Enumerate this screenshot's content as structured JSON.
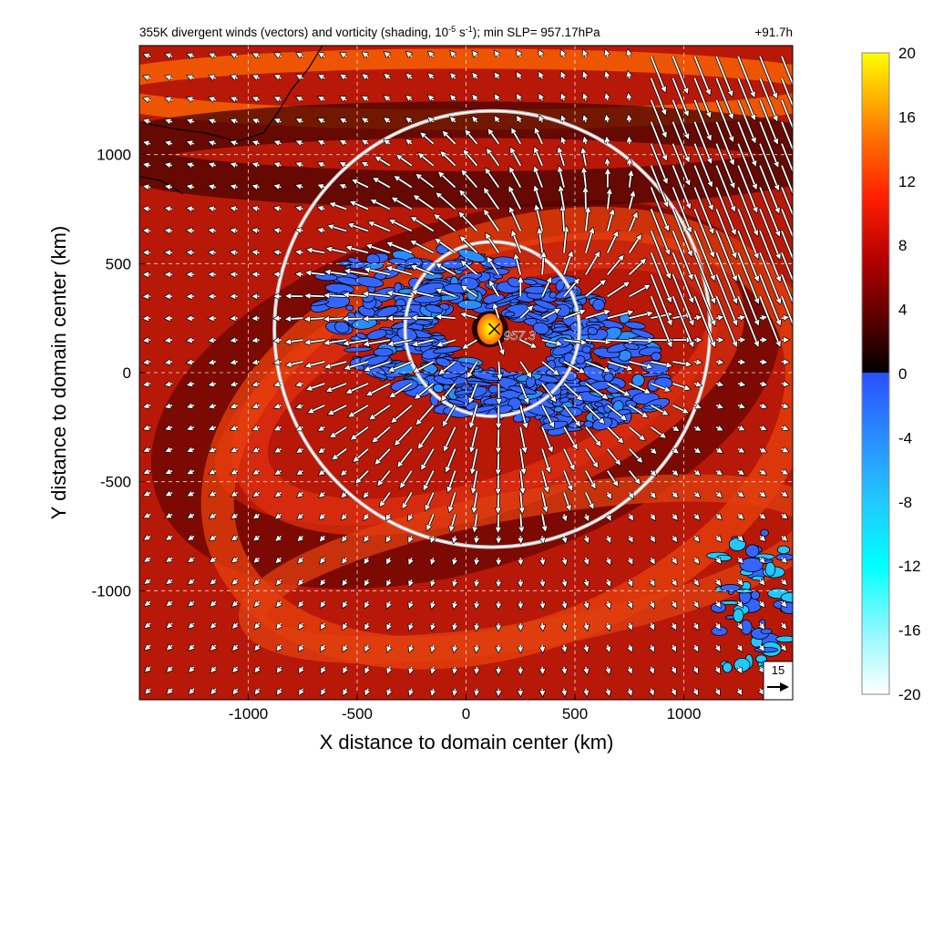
{
  "chart_data": {
    "type": "heatmap",
    "title": {
      "main": "355K divergent winds (vectors) and vorticity (shading, 10",
      "sup": "-5",
      "unit": " s",
      "sup2": "-1",
      "tail": "); min SLP= 957.17hPa"
    },
    "forecast_hour": "+91.7h",
    "xlabel": "X distance to domain center (km)",
    "ylabel": "Y distance to domain center (km)",
    "xlim": [
      -1500,
      1500
    ],
    "ylim": [
      -1500,
      1500
    ],
    "x_ticks": [
      -1000,
      -500,
      0,
      500,
      1000
    ],
    "y_ticks": [
      -1000,
      -500,
      0,
      500,
      1000
    ],
    "grid": true,
    "colorbar": {
      "range": [
        -20,
        20
      ],
      "ticks": [
        20,
        16,
        12,
        8,
        4,
        0,
        -4,
        -8,
        -12,
        -16,
        -20
      ],
      "positive_colors": [
        "#000000",
        "#5a0000",
        "#b40000",
        "#ff2000",
        "#ff7800",
        "#ffc800",
        "#ffff00"
      ],
      "negative_colors": [
        "#2a50ff",
        "#2a8cff",
        "#22c8ff",
        "#00ffff",
        "#8cf8ff",
        "#ffffff"
      ]
    },
    "center_label": "957.3",
    "center_position_km": [
      130,
      200
    ],
    "range_rings_km": [
      {
        "center": [
          120,
          200
        ],
        "radius": 400
      },
      {
        "center": [
          120,
          200
        ],
        "radius": 1000
      }
    ],
    "reference_vector": {
      "label": "15"
    },
    "features": [
      {
        "kind": "vorticity_max",
        "x": 110,
        "y": 200,
        "value": 20
      },
      {
        "kind": "negative_band",
        "x_range": [
          -900,
          1200
        ],
        "y_range": [
          -600,
          700
        ]
      },
      {
        "kind": "coastline",
        "x_range": [
          -1500,
          -650
        ],
        "y_range": [
          700,
          1500
        ]
      }
    ]
  }
}
